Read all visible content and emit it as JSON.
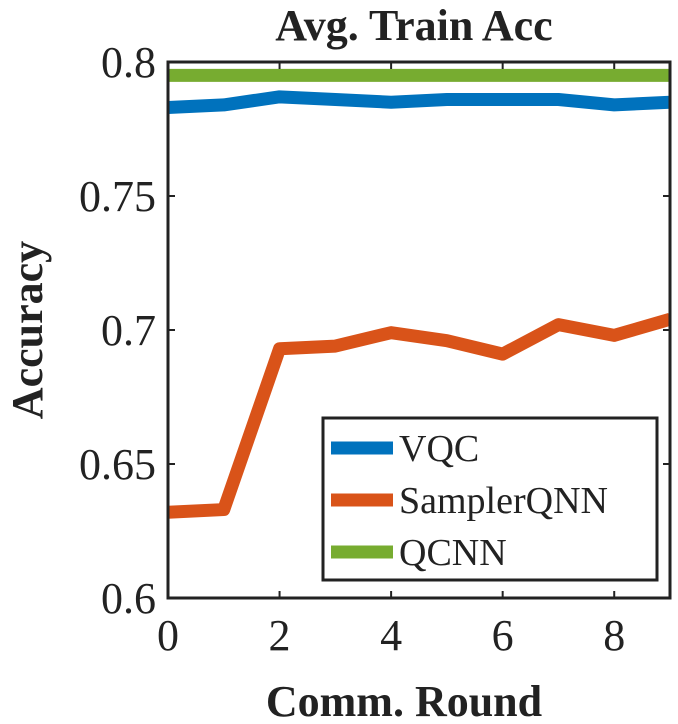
{
  "chart_data": {
    "type": "line",
    "title": "Avg. Train Acc",
    "xlabel": "Comm. Round",
    "ylabel": "Accuracy",
    "xlim": [
      0,
      9
    ],
    "ylim": [
      0.6,
      0.8
    ],
    "xticks": [
      0,
      2,
      4,
      6,
      8
    ],
    "xtick_labels": [
      "0",
      "2",
      "4",
      "6",
      "8"
    ],
    "yticks": [
      0.6,
      0.65,
      0.7,
      0.75,
      0.8
    ],
    "ytick_labels": [
      "0.6",
      "0.65",
      "0.7",
      "0.75",
      "0.8"
    ],
    "grid": false,
    "legend_position": "bottom-right",
    "x": [
      0,
      1,
      2,
      3,
      4,
      5,
      6,
      7,
      8,
      9
    ],
    "series": [
      {
        "name": "VQC",
        "color": "#0072BD",
        "values": [
          0.783,
          0.784,
          0.787,
          0.786,
          0.785,
          0.786,
          0.786,
          0.786,
          0.784,
          0.785
        ]
      },
      {
        "name": "SamplerQNN",
        "color": "#D95319",
        "values": [
          0.632,
          0.633,
          0.693,
          0.694,
          0.699,
          0.696,
          0.691,
          0.702,
          0.698,
          0.704
        ]
      },
      {
        "name": "QCNN",
        "color": "#77AC30",
        "values": [
          0.795,
          0.795,
          0.795,
          0.795,
          0.795,
          0.795,
          0.795,
          0.795,
          0.795,
          0.795
        ]
      }
    ]
  }
}
